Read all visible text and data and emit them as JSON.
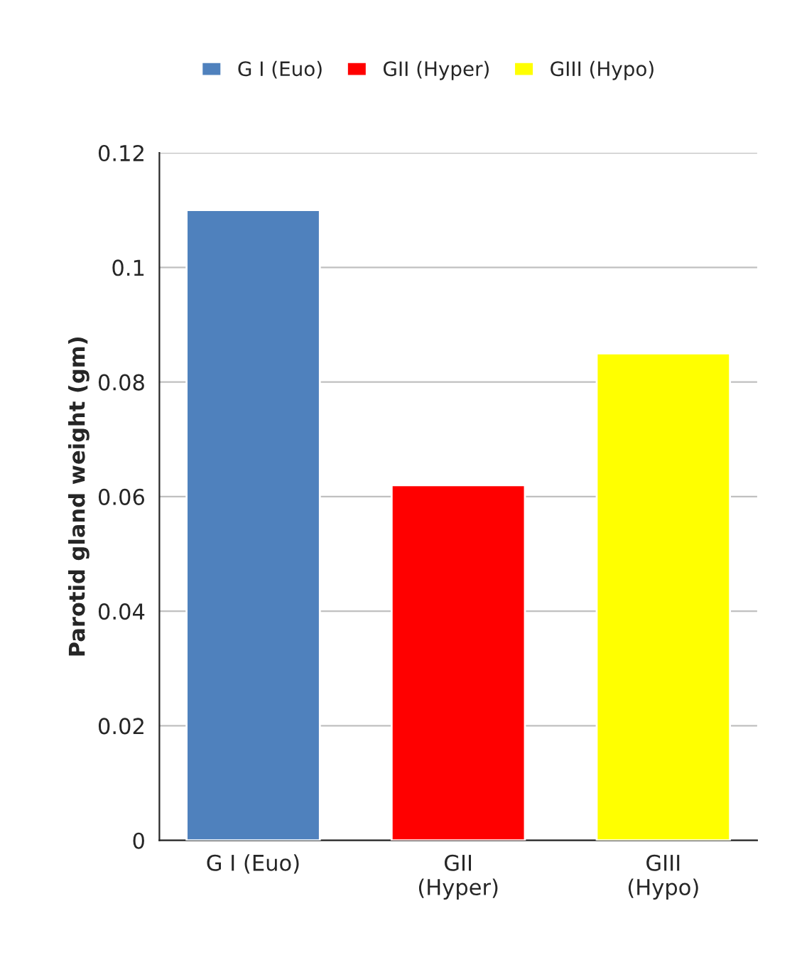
{
  "chart_data": {
    "type": "bar",
    "ylabel": "Parotid gland weight (gm)",
    "categories": [
      "G I (Euo)",
      "GII\n(Hyper)",
      "GIII\n(Hypo)"
    ],
    "series": [
      {
        "name": "G I (Euo)",
        "color": "#4f81bd",
        "values": [
          0.11,
          null,
          null
        ]
      },
      {
        "name": "GII (Hyper)",
        "color": "#ff0000",
        "values": [
          null,
          0.062,
          null
        ]
      },
      {
        "name": "GIII (Hypo)",
        "color": "#ffff00",
        "values": [
          null,
          null,
          0.085
        ]
      }
    ],
    "ylim": [
      0,
      0.12
    ],
    "yticks": [
      0,
      0.02,
      0.04,
      0.06,
      0.08,
      0.1,
      0.12
    ],
    "grid": "y",
    "legend": "top"
  }
}
